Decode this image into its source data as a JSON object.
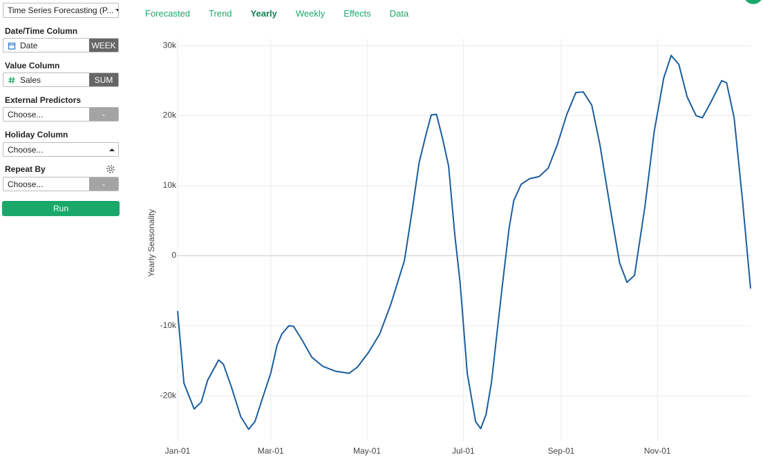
{
  "sidebar": {
    "analysis": "Time Series Forecasting (P...",
    "fields": [
      {
        "label": "Date/Time Column",
        "value": "Date",
        "button": "WEEK"
      },
      {
        "label": "Value Column",
        "value": "Sales",
        "button": "SUM"
      },
      {
        "label": "External Predictors",
        "value": "Choose...",
        "button": "-"
      },
      {
        "label": "Holiday Column",
        "value": "Choose..."
      },
      {
        "label": "Repeat By",
        "value": "Choose...",
        "button": "-"
      }
    ],
    "run": "Run"
  },
  "tabs": [
    "Forecasted",
    "Trend",
    "Yearly",
    "Weekly",
    "Effects",
    "Data"
  ],
  "active_tab": 2,
  "chart_data": {
    "type": "line",
    "y_label": "Yearly Seasonality",
    "color": "#1a5c9e",
    "grid": true,
    "x": [
      0,
      4,
      10.5,
      15,
      19,
      26,
      29,
      34,
      40,
      45,
      49,
      54,
      59,
      63,
      66,
      70.5,
      73.5,
      79,
      85,
      92,
      100,
      108.6,
      114,
      121,
      128,
      135,
      143.7,
      148.5,
      153,
      157.7,
      160.7,
      164,
      167.8,
      171.7,
      175.6,
      179,
      183.5,
      188.8,
      192,
      195.4,
      198.9,
      205.4,
      210,
      213,
      217.7,
      223,
      229,
      234.8,
      240.5,
      246.6,
      252.3,
      257,
      262.4,
      267.6,
      274.6,
      280,
      284.7,
      289.5,
      296,
      302,
      308,
      312.7,
      317.6,
      322.8,
      328.5,
      332.5,
      338,
      344.7,
      347.8,
      352.6,
      357.9,
      363
    ],
    "values": [
      -7900,
      -18200,
      -21900,
      -20900,
      -17800,
      -14900,
      -15500,
      -18700,
      -23000,
      -24800,
      -23700,
      -20200,
      -16800,
      -12800,
      -11200,
      -10000,
      -10100,
      -12100,
      -14500,
      -15800,
      -16500,
      -16800,
      -15900,
      -13800,
      -11200,
      -7000,
      -700,
      6300,
      13300,
      17600,
      20100,
      20200,
      16800,
      12800,
      3000,
      -3900,
      -16800,
      -23700,
      -24700,
      -22700,
      -18000,
      -4900,
      3900,
      7900,
      10200,
      11000,
      11300,
      12500,
      15800,
      20200,
      23300,
      23400,
      21500,
      15800,
      6100,
      -1000,
      -3800,
      -2800,
      6900,
      17800,
      25400,
      28600,
      27300,
      22700,
      20000,
      19700,
      22000,
      25000,
      24700,
      19700,
      7900,
      -4700
    ],
    "xlim": [
      0,
      363
    ],
    "xticks": [
      {
        "value": 0,
        "label": "Jan-01"
      },
      {
        "value": 59,
        "label": "Mar-01"
      },
      {
        "value": 120,
        "label": "May-01"
      },
      {
        "value": 181,
        "label": "Jul-01"
      },
      {
        "value": 243,
        "label": "Sep-01"
      },
      {
        "value": 304,
        "label": "Nov-01"
      }
    ],
    "ylim": [
      -26500,
      31000
    ],
    "yticks": [
      {
        "value": -20000,
        "label": "-20k"
      },
      {
        "value": -10000,
        "label": "-10k"
      },
      0,
      {
        "value": 10000,
        "label": "10k"
      },
      {
        "value": 20000,
        "label": "20k"
      },
      {
        "value": 30000,
        "label": "30k"
      }
    ]
  }
}
